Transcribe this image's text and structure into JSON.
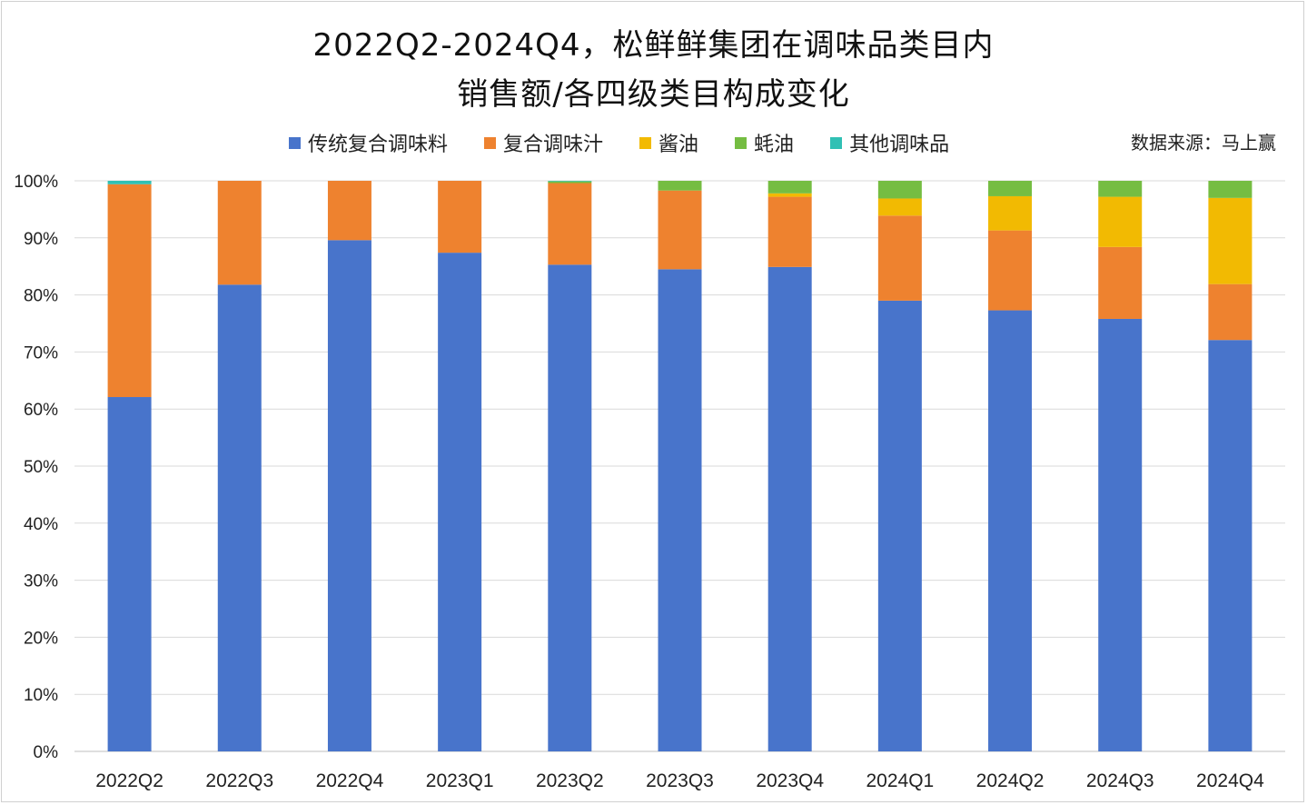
{
  "title": {
    "line1": "2022Q2-2024Q4，松鲜鲜集团在调味品类目内",
    "line2": "销售额/各四级类目构成变化"
  },
  "source_label": "数据来源：马上赢",
  "chart_data": {
    "type": "bar",
    "stacked": true,
    "percent": true,
    "categories": [
      "2022Q2",
      "2022Q3",
      "2022Q4",
      "2023Q1",
      "2023Q2",
      "2023Q3",
      "2023Q4",
      "2024Q1",
      "2024Q2",
      "2024Q3",
      "2024Q4"
    ],
    "series": [
      {
        "name": "传统复合调味料",
        "color": "#4874CB",
        "values": [
          62.1,
          81.8,
          89.6,
          87.4,
          85.3,
          84.5,
          84.9,
          79.0,
          77.3,
          75.8,
          72.1
        ]
      },
      {
        "name": "复合调味汁",
        "color": "#EE822F",
        "values": [
          37.3,
          18.2,
          10.4,
          12.6,
          14.3,
          13.8,
          12.3,
          14.9,
          14.0,
          12.6,
          9.8
        ]
      },
      {
        "name": "酱油",
        "color": "#F2BA02",
        "values": [
          0.0,
          0.0,
          0.0,
          0.0,
          0.0,
          0.0,
          0.6,
          3.0,
          6.0,
          8.8,
          15.1
        ]
      },
      {
        "name": "蚝油",
        "color": "#75BD42",
        "values": [
          0.0,
          0.0,
          0.0,
          0.0,
          0.3,
          1.7,
          2.2,
          3.1,
          2.7,
          2.8,
          3.0
        ]
      },
      {
        "name": "其他调味品",
        "color": "#30C0B4",
        "values": [
          0.6,
          0.0,
          0.0,
          0.0,
          0.1,
          0.0,
          0.0,
          0.0,
          0.0,
          0.0,
          0.0
        ]
      }
    ],
    "ylim": [
      0,
      100
    ],
    "yticks": [
      "0%",
      "10%",
      "20%",
      "30%",
      "40%",
      "50%",
      "60%",
      "70%",
      "80%",
      "90%",
      "100%"
    ],
    "grid": true,
    "legend_position": "top"
  }
}
